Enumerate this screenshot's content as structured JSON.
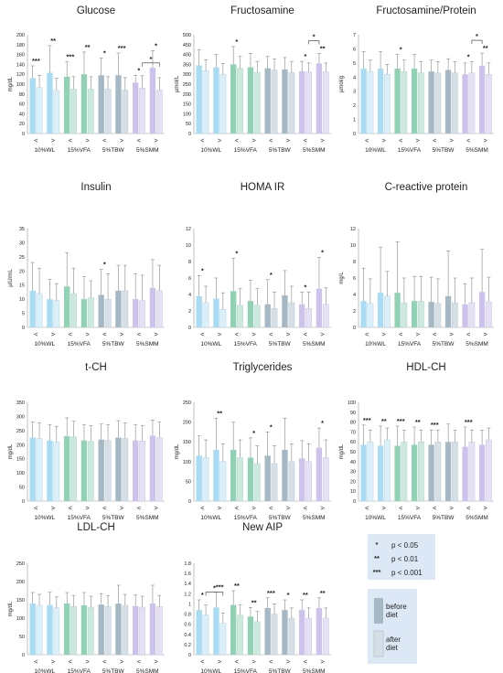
{
  "colors": {
    "before": {
      "WL": "#a8dcf4",
      "VFA": "#92d2b4",
      "TBW": "#a6b8c4",
      "SMM": "#cdc2ec"
    },
    "after": {
      "WL": "#d9f0fb",
      "VFA": "#cbeadc",
      "TBW": "#d6dfe5",
      "SMM": "#e6e0f7"
    },
    "error": "#888888",
    "legend_bg": "#dce8f5",
    "legend_before": "#a6b8c4",
    "legend_after": "#d6dfe5"
  },
  "groups": [
    "10%WL",
    "15%VFA",
    "5%TBW",
    "5%SMM"
  ],
  "arrows": [
    "<",
    ">"
  ],
  "legend": {
    "significance": [
      {
        "symbol": "*",
        "label": "p < 0.05"
      },
      {
        "symbol": "**",
        "label": "p < 0.01"
      },
      {
        "symbol": "***",
        "label": "p < 0.001"
      }
    ],
    "before_line1": "before",
    "before_line2": "diet",
    "after_line1": "after",
    "after_line2": "diet"
  },
  "chart_data": [
    {
      "type": "bar",
      "title": "Glucose",
      "ylabel": "mg/dL",
      "ylim": [
        0,
        200
      ],
      "yticks": [
        0,
        20,
        40,
        60,
        80,
        100,
        120,
        140,
        160,
        180,
        200
      ],
      "values": [
        [
          112,
          93,
          123,
          87
        ],
        [
          115,
          90,
          120,
          90
        ],
        [
          118,
          90,
          118,
          88
        ],
        [
          103,
          92,
          133,
          88
        ]
      ],
      "errors": [
        [
          25,
          25,
          55,
          25
        ],
        [
          30,
          25,
          45,
          25
        ],
        [
          35,
          25,
          45,
          25
        ],
        [
          15,
          25,
          35,
          25
        ]
      ],
      "sig": [
        [
          "***",
          ""
        ],
        [
          "**",
          ""
        ],
        [
          "***",
          ""
        ],
        [
          "**",
          ""
        ],
        [
          "*",
          ""
        ],
        [
          "***",
          ""
        ],
        [
          "*",
          "*"
        ],
        [
          "*",
          "***"
        ]
      ],
      "brackets": [
        [
          13,
          15
        ]
      ]
    },
    {
      "type": "bar",
      "title": "Fructosamine",
      "ylabel": "µmol/L",
      "ylim": [
        0,
        500
      ],
      "yticks": [
        0,
        50,
        100,
        150,
        200,
        250,
        300,
        350,
        400,
        450,
        500
      ],
      "values": [
        [
          345,
          318,
          335,
          300
        ],
        [
          350,
          330,
          335,
          310
        ],
        [
          330,
          322,
          325,
          310
        ],
        [
          315,
          312,
          355,
          312
        ]
      ],
      "errors": [
        [
          80,
          55,
          65,
          55
        ],
        [
          90,
          60,
          70,
          55
        ],
        [
          60,
          55,
          60,
          55
        ],
        [
          50,
          45,
          50,
          45
        ]
      ],
      "sig": [
        [
          "",
          ""
        ],
        [
          "",
          ""
        ],
        [
          "*",
          ""
        ],
        [
          "",
          ""
        ],
        [
          "",
          ""
        ],
        [
          "",
          ""
        ],
        [
          "*",
          ""
        ],
        [
          "**",
          ""
        ]
      ],
      "brackets": [
        [
          13,
          14
        ]
      ]
    },
    {
      "type": "bar",
      "title": "Fructosamine/Protein",
      "ylabel": "µmol/g",
      "ylim": [
        0,
        7
      ],
      "yticks": [
        0,
        1,
        2,
        3,
        4,
        5,
        6,
        7
      ],
      "values": [
        [
          4.6,
          4.4,
          4.6,
          4.2
        ],
        [
          4.6,
          4.4,
          4.6,
          4.3
        ],
        [
          4.4,
          4.3,
          4.5,
          4.3
        ],
        [
          4.2,
          4.3,
          4.8,
          4.2
        ]
      ],
      "errors": [
        [
          1.2,
          0.8,
          1.2,
          0.7
        ],
        [
          1.0,
          0.8,
          1.0,
          0.8
        ],
        [
          0.8,
          0.8,
          0.8,
          0.8
        ],
        [
          0.8,
          0.8,
          0.9,
          0.8
        ]
      ],
      "sig": [
        [
          "",
          ""
        ],
        [
          "",
          ""
        ],
        [
          "*",
          ""
        ],
        [
          "",
          ""
        ],
        [
          "",
          ""
        ],
        [
          "",
          ""
        ],
        [
          "*",
          ""
        ],
        [
          "**",
          ""
        ]
      ],
      "brackets": [
        [
          13,
          14
        ]
      ]
    },
    {
      "type": "bar",
      "title": "Insulin",
      "ylabel": "µIU/mL",
      "ylim": [
        0,
        35
      ],
      "yticks": [
        0,
        5,
        10,
        15,
        20,
        25,
        30,
        35
      ],
      "values": [
        [
          13,
          12,
          10,
          9.5
        ],
        [
          14.5,
          12,
          10,
          10.5
        ],
        [
          11.5,
          10,
          13,
          13
        ],
        [
          10,
          9.5,
          14,
          13
        ]
      ],
      "errors": [
        [
          10,
          9,
          7,
          6
        ],
        [
          12,
          9,
          8,
          6
        ],
        [
          9,
          9,
          9,
          9
        ],
        [
          9,
          9,
          10,
          9
        ]
      ],
      "sig": [
        [
          "",
          ""
        ],
        [
          "",
          ""
        ],
        [
          "",
          ""
        ],
        [
          "",
          ""
        ],
        [
          "*",
          ""
        ],
        [
          "",
          ""
        ],
        [
          "",
          ""
        ],
        [
          "",
          ""
        ]
      ],
      "brackets": []
    },
    {
      "type": "bar",
      "title": "HOMA IR",
      "ylabel": "",
      "ylim": [
        0,
        12
      ],
      "yticks": [
        0,
        2,
        4,
        6,
        8,
        10,
        12
      ],
      "values": [
        [
          3.8,
          3.0,
          3.5,
          2.2
        ],
        [
          4.4,
          2.7,
          3.2,
          2.7
        ],
        [
          2.8,
          2.3,
          3.9,
          3.0
        ],
        [
          2.8,
          2.3,
          4.7,
          2.8
        ]
      ],
      "errors": [
        [
          2.5,
          2.0,
          2.5,
          2.0
        ],
        [
          4.0,
          2.0,
          2.5,
          2.0
        ],
        [
          3.0,
          2.0,
          3.0,
          2.0
        ],
        [
          1.5,
          2.0,
          3.8,
          2.0
        ]
      ],
      "sig": [
        [
          "*",
          ""
        ],
        [
          "",
          ""
        ],
        [
          "*",
          ""
        ],
        [
          "",
          ""
        ],
        [
          "*",
          ""
        ],
        [
          "",
          ""
        ],
        [
          "*",
          ""
        ],
        [
          "*",
          ""
        ]
      ],
      "brackets": []
    },
    {
      "type": "bar",
      "title": "C-reactive protein",
      "ylabel": "mg/L",
      "ylim": [
        0,
        12
      ],
      "yticks": [
        0,
        2,
        4,
        6,
        8,
        10,
        12
      ],
      "values": [
        [
          3.2,
          2.9,
          4.2,
          3.8
        ],
        [
          4.2,
          3.0,
          3.2,
          3.2
        ],
        [
          3.1,
          2.9,
          3.8,
          3.0
        ],
        [
          2.8,
          3.0,
          4.3,
          3.1
        ]
      ],
      "errors": [
        [
          4.0,
          3.0,
          5.5,
          3.0
        ],
        [
          6.2,
          3.0,
          3.0,
          3.0
        ],
        [
          3.0,
          3.0,
          5.5,
          3.0
        ],
        [
          2.5,
          3.0,
          5.2,
          3.0
        ]
      ],
      "sig": [
        [
          "",
          ""
        ],
        [
          "",
          ""
        ],
        [
          "",
          ""
        ],
        [
          "",
          ""
        ],
        [
          "",
          ""
        ],
        [
          "",
          ""
        ],
        [
          "",
          ""
        ],
        [
          "",
          ""
        ]
      ],
      "brackets": []
    },
    {
      "type": "bar",
      "title": "t-CH",
      "ylabel": "mg/dL",
      "ylim": [
        0,
        350
      ],
      "yticks": [
        0,
        50,
        100,
        150,
        200,
        250,
        300,
        350
      ],
      "values": [
        [
          225,
          222,
          215,
          210
        ],
        [
          230,
          228,
          215,
          212
        ],
        [
          218,
          215,
          225,
          222
        ],
        [
          215,
          213,
          232,
          225
        ]
      ],
      "errors": [
        [
          55,
          55,
          55,
          55
        ],
        [
          65,
          55,
          55,
          55
        ],
        [
          55,
          55,
          60,
          55
        ],
        [
          55,
          55,
          55,
          55
        ]
      ],
      "sig": [
        [
          "",
          ""
        ],
        [
          "",
          ""
        ],
        [
          "",
          ""
        ],
        [
          "",
          ""
        ],
        [
          "",
          ""
        ],
        [
          "",
          ""
        ],
        [
          "",
          ""
        ],
        [
          "",
          ""
        ]
      ],
      "brackets": []
    },
    {
      "type": "bar",
      "title": "Triglycerides",
      "ylabel": "mg/dL",
      "ylim": [
        0,
        250
      ],
      "yticks": [
        0,
        50,
        100,
        150,
        200,
        250
      ],
      "values": [
        [
          115,
          110,
          130,
          100
        ],
        [
          130,
          110,
          110,
          95
        ],
        [
          115,
          95,
          130,
          100
        ],
        [
          108,
          100,
          135,
          110
        ]
      ],
      "errors": [
        [
          50,
          45,
          80,
          45
        ],
        [
          70,
          45,
          50,
          45
        ],
        [
          60,
          45,
          80,
          45
        ],
        [
          45,
          45,
          50,
          45
        ]
      ],
      "sig": [
        [
          "",
          ""
        ],
        [
          "**",
          ""
        ],
        [
          "",
          ""
        ],
        [
          "*",
          ""
        ],
        [
          "*",
          ""
        ],
        [
          "",
          ""
        ],
        [
          "",
          ""
        ],
        [
          "*",
          ""
        ]
      ],
      "brackets": []
    },
    {
      "type": "bar",
      "title": "HDL-CH",
      "ylabel": "mg/dL",
      "ylim": [
        0,
        100
      ],
      "yticks": [
        0,
        10,
        20,
        30,
        40,
        50,
        60,
        70,
        80,
        90,
        100
      ],
      "values": [
        [
          57,
          60,
          56,
          62
        ],
        [
          56,
          60,
          57,
          60
        ],
        [
          57,
          60,
          60,
          60
        ],
        [
          55,
          60,
          57,
          62
        ]
      ],
      "errors": [
        [
          20,
          12,
          20,
          12
        ],
        [
          20,
          12,
          18,
          12
        ],
        [
          15,
          12,
          18,
          12
        ],
        [
          20,
          12,
          15,
          12
        ]
      ],
      "sig": [
        [
          "***",
          ""
        ],
        [
          "**",
          ""
        ],
        [
          "***",
          ""
        ],
        [
          "**",
          ""
        ],
        [
          "***",
          ""
        ],
        [
          "",
          ""
        ],
        [
          "***",
          ""
        ],
        [
          "",
          ""
        ]
      ],
      "brackets": []
    },
    {
      "type": "bar",
      "title": "LDL-CH",
      "ylabel": "mg/dL",
      "ylim": [
        0,
        250
      ],
      "yticks": [
        0,
        50,
        100,
        150,
        200,
        250
      ],
      "values": [
        [
          140,
          135,
          136,
          128
        ],
        [
          140,
          132,
          135,
          130
        ],
        [
          137,
          132,
          140,
          135
        ],
        [
          133,
          130,
          140,
          132
        ]
      ],
      "errors": [
        [
          30,
          30,
          35,
          30
        ],
        [
          30,
          30,
          35,
          30
        ],
        [
          30,
          30,
          50,
          30
        ],
        [
          30,
          30,
          50,
          30
        ]
      ],
      "sig": [
        [
          "",
          ""
        ],
        [
          "",
          ""
        ],
        [
          "",
          ""
        ],
        [
          "",
          ""
        ],
        [
          "",
          ""
        ],
        [
          "",
          ""
        ],
        [
          "",
          ""
        ],
        [
          "",
          ""
        ]
      ],
      "brackets": []
    },
    {
      "type": "bar",
      "title": "New AIP",
      "ylabel": "",
      "ylim": [
        0,
        1.8
      ],
      "yticks": [
        0,
        0.2,
        0.4,
        0.6,
        0.8,
        1,
        1.2,
        1.4,
        1.6,
        1.8
      ],
      "values": [
        [
          0.88,
          0.78,
          0.93,
          0.62
        ],
        [
          0.98,
          0.78,
          0.75,
          0.65
        ],
        [
          0.92,
          0.8,
          0.88,
          0.72
        ],
        [
          0.88,
          0.72,
          0.92,
          0.72
        ]
      ],
      "errors": [
        [
          0.2,
          0.2,
          0.3,
          0.2
        ],
        [
          0.28,
          0.2,
          0.18,
          0.2
        ],
        [
          0.2,
          0.2,
          0.2,
          0.2
        ],
        [
          0.2,
          0.2,
          0.2,
          0.2
        ]
      ],
      "sig": [
        [
          "*",
          ""
        ],
        [
          "***",
          ""
        ],
        [
          "**",
          ""
        ],
        [
          "**",
          ""
        ],
        [
          "***",
          ""
        ],
        [
          "*",
          ""
        ],
        [
          "**",
          ""
        ],
        [
          "**",
          ""
        ]
      ],
      "brackets": [
        [
          1,
          3
        ]
      ]
    }
  ]
}
